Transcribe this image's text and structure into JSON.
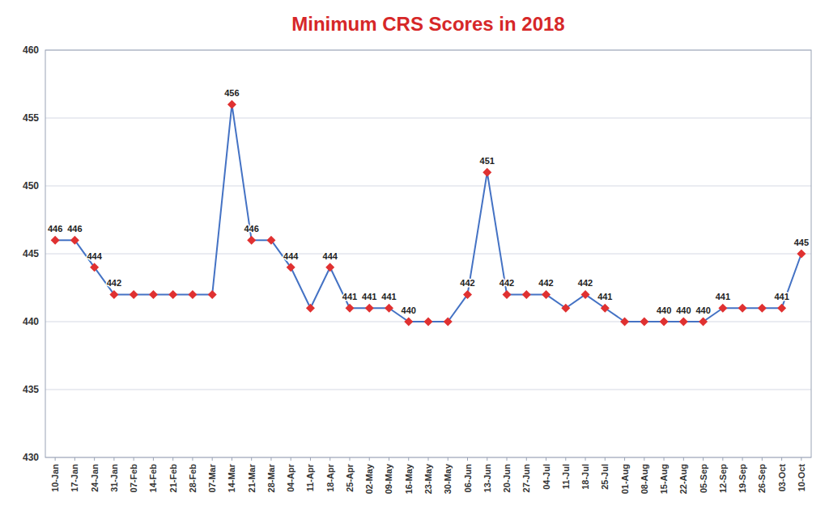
{
  "chart_data": {
    "type": "line",
    "title": "Minimum CRS Scores in 2018",
    "categories": [
      "10-Jan",
      "17-Jan",
      "24-Jan",
      "31-Jan",
      "07-Feb",
      "14-Feb",
      "21-Feb",
      "28-Feb",
      "07-Mar",
      "14-Mar",
      "21-Mar",
      "28-Mar",
      "04-Apr",
      "11-Apr",
      "18-Apr",
      "25-Apr",
      "02-May",
      "09-May",
      "16-May",
      "23-May",
      "30-May",
      "06-Jun",
      "13-Jun",
      "20-Jun",
      "27-Jun",
      "04-Jul",
      "11-Jul",
      "18-Jul",
      "25-Jul",
      "01-Aug",
      "08-Aug",
      "15-Aug",
      "22-Aug",
      "05-Sep",
      "12-Sep",
      "19-Sep",
      "26-Sep",
      "03-Oct",
      "10-Oct"
    ],
    "values": [
      446,
      446,
      444,
      442,
      442,
      442,
      442,
      442,
      442,
      456,
      446,
      446,
      444,
      441,
      444,
      441,
      441,
      441,
      440,
      440,
      440,
      442,
      451,
      442,
      442,
      442,
      441,
      442,
      441,
      440,
      440,
      440,
      440,
      440,
      441,
      441,
      441,
      441,
      445
    ],
    "value_labels": [
      "446",
      "446",
      "444",
      "442",
      null,
      null,
      null,
      null,
      null,
      "456",
      "446",
      null,
      "444",
      null,
      "444",
      "441",
      "441",
      "441",
      "440",
      null,
      null,
      "442",
      "451",
      "442",
      null,
      "442",
      null,
      "442",
      "441",
      null,
      null,
      "440",
      "440",
      "440",
      "441",
      null,
      null,
      "441",
      "445"
    ],
    "data_labels": true,
    "color": "#4472C4",
    "marker": "diamond",
    "ylim": [
      430,
      460
    ],
    "yticks": [
      430,
      435,
      440,
      445,
      450,
      455,
      460
    ],
    "grid": true
  }
}
